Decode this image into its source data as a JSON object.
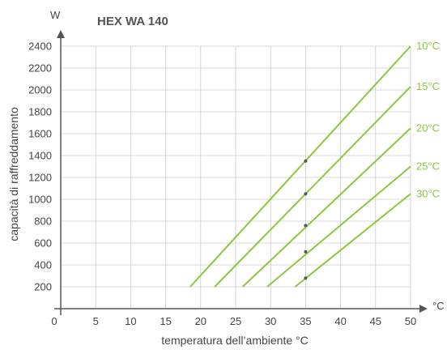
{
  "chart_data": {
    "type": "line",
    "title": "HEX WA 140",
    "xlabel": "temperatura dell’ambiente °C",
    "ylabel": "capacità di raffreddamento",
    "x_unit": "°C",
    "y_unit": "W",
    "xlim": [
      0,
      50
    ],
    "ylim": [
      0,
      2400
    ],
    "x_ticks": [
      0,
      5,
      10,
      15,
      20,
      25,
      30,
      35,
      40,
      45,
      50
    ],
    "y_ticks": [
      200,
      400,
      600,
      800,
      1000,
      1200,
      1400,
      1600,
      1800,
      2000,
      2200,
      2400
    ],
    "grid": true,
    "line_color": "#8dc63f",
    "series": [
      {
        "name": "10°C",
        "x": [
          18.5,
          50
        ],
        "y": [
          200,
          2400
        ]
      },
      {
        "name": "15°C",
        "x": [
          22,
          50
        ],
        "y": [
          200,
          2030
        ]
      },
      {
        "name": "20°C",
        "x": [
          26,
          50
        ],
        "y": [
          200,
          1650
        ]
      },
      {
        "name": "25°C",
        "x": [
          29.5,
          50
        ],
        "y": [
          200,
          1300
        ]
      },
      {
        "name": "30°C",
        "x": [
          33.5,
          50
        ],
        "y": [
          200,
          1050
        ]
      }
    ],
    "markers": [
      {
        "x": 35,
        "y": 1350
      },
      {
        "x": 35,
        "y": 1050
      },
      {
        "x": 35,
        "y": 760
      },
      {
        "x": 35,
        "y": 520
      },
      {
        "x": 35,
        "y": 280
      }
    ]
  }
}
